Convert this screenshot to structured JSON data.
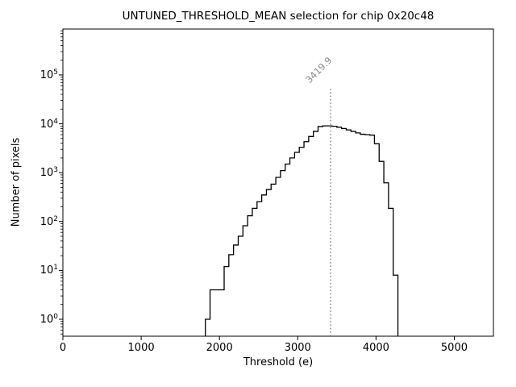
{
  "chart_data": {
    "type": "bar",
    "subtype": "step-histogram",
    "title": "UNTUNED_THRESHOLD_MEAN selection for chip 0x20c48",
    "xlabel": "Threshold (e)",
    "ylabel": "Number of pixels",
    "yscale": "log",
    "xlim": [
      0,
      5500
    ],
    "ylim": [
      0.45,
      870000
    ],
    "x_ticks": [
      0,
      1000,
      2000,
      3000,
      4000,
      5000
    ],
    "y_tick_exponents": [
      0,
      1,
      2,
      3,
      4,
      5
    ],
    "grid": false,
    "legend": "none",
    "line_color": "#000000",
    "background_color": "#ffffff",
    "bin_edges": [
      1820,
      1880,
      1940,
      2000,
      2060,
      2120,
      2180,
      2240,
      2300,
      2360,
      2420,
      2480,
      2540,
      2600,
      2660,
      2720,
      2780,
      2840,
      2900,
      2960,
      3020,
      3080,
      3140,
      3200,
      3260,
      3320,
      3380,
      3440,
      3500,
      3560,
      3620,
      3680,
      3740,
      3800,
      3860,
      3920,
      3980,
      4040,
      4100,
      4160,
      4220,
      4280
    ],
    "counts": [
      1,
      4,
      4,
      4,
      12,
      21,
      33,
      50,
      82,
      131,
      186,
      255,
      350,
      452,
      582,
      800,
      1100,
      1500,
      2000,
      2600,
      3300,
      4300,
      5500,
      7000,
      8800,
      9060,
      9060,
      8900,
      8500,
      8000,
      7500,
      7000,
      6500,
      6100,
      6000,
      5870,
      3900,
      1700,
      620,
      186,
      8
    ],
    "vline": {
      "x": 3419.9,
      "label": "3419.9",
      "color": "#8a8a8a",
      "style": "dotted"
    }
  }
}
